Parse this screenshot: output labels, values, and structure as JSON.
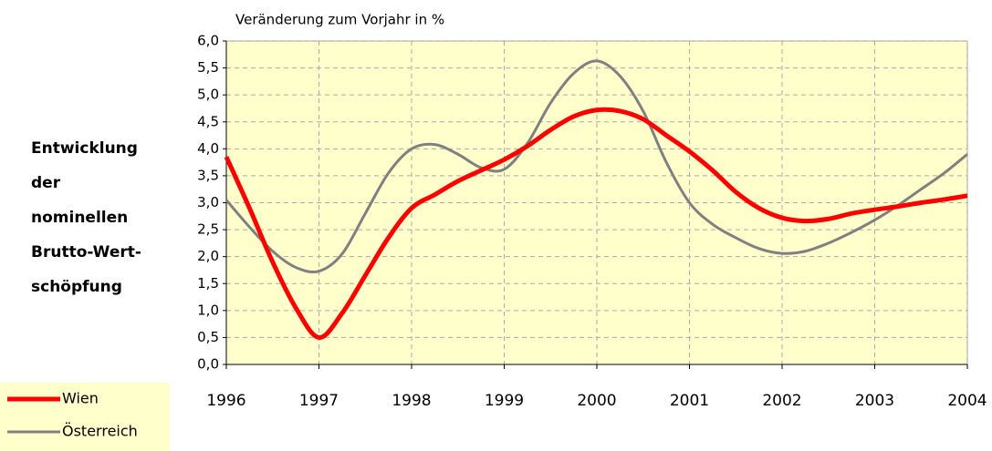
{
  "chart_data": {
    "type": "line",
    "side_title": [
      "Entwicklung",
      "der",
      "nominellen",
      "Brutto-Wert-",
      "schöpfung"
    ],
    "y_label": "Veränderung zum Vorjahr in %",
    "x": [
      1996,
      1996.25,
      1996.5,
      1996.75,
      1997,
      1997.25,
      1997.5,
      1997.75,
      1998,
      1998.25,
      1998.5,
      1998.75,
      1999,
      1999.25,
      1999.5,
      1999.75,
      2000,
      2000.25,
      2000.5,
      2000.75,
      2001,
      2001.25,
      2001.5,
      2001.75,
      2002,
      2002.25,
      2002.5,
      2002.75,
      2003,
      2003.25,
      2003.5,
      2003.75,
      2004
    ],
    "series": [
      {
        "name": "Wien",
        "color": "#ff0000",
        "width": 5,
        "values": [
          3.85,
          2.9,
          1.9,
          1.05,
          0.5,
          0.95,
          1.65,
          2.35,
          2.9,
          3.15,
          3.4,
          3.6,
          3.8,
          4.05,
          4.35,
          4.6,
          4.72,
          4.7,
          4.55,
          4.25,
          3.95,
          3.6,
          3.2,
          2.9,
          2.72,
          2.66,
          2.7,
          2.8,
          2.87,
          2.93,
          3.0,
          3.06,
          3.13
        ]
      },
      {
        "name": "Österreich",
        "color": "#808080",
        "width": 3,
        "values": [
          3.05,
          2.55,
          2.1,
          1.8,
          1.73,
          2.05,
          2.8,
          3.55,
          4.0,
          4.08,
          3.9,
          3.65,
          3.62,
          4.1,
          4.85,
          5.4,
          5.63,
          5.35,
          4.7,
          3.75,
          3.0,
          2.6,
          2.35,
          2.15,
          2.06,
          2.1,
          2.25,
          2.45,
          2.68,
          2.95,
          3.25,
          3.55,
          3.9
        ]
      }
    ],
    "xlim": [
      1996,
      2004
    ],
    "xticks": [
      1996,
      1997,
      1998,
      1999,
      2000,
      2001,
      2002,
      2003,
      2004
    ],
    "ylim": [
      0,
      6
    ],
    "yticks": [
      {
        "value": 0,
        "label": "0,0"
      },
      {
        "value": 0.5,
        "label": "0,5"
      },
      {
        "value": 1,
        "label": "1,0"
      },
      {
        "value": 1.5,
        "label": "1,5"
      },
      {
        "value": 2,
        "label": "2,0"
      },
      {
        "value": 2.5,
        "label": "2,5"
      },
      {
        "value": 3,
        "label": "3,0"
      },
      {
        "value": 3.5,
        "label": "3,5"
      },
      {
        "value": 4,
        "label": "4,0"
      },
      {
        "value": 4.5,
        "label": "4,5"
      },
      {
        "value": 5,
        "label": "5,0"
      },
      {
        "value": 5.5,
        "label": "5,5"
      },
      {
        "value": 6,
        "label": "6,0"
      }
    ],
    "grid": true,
    "plot_background": "#ffffcc",
    "legend": "lower left"
  }
}
